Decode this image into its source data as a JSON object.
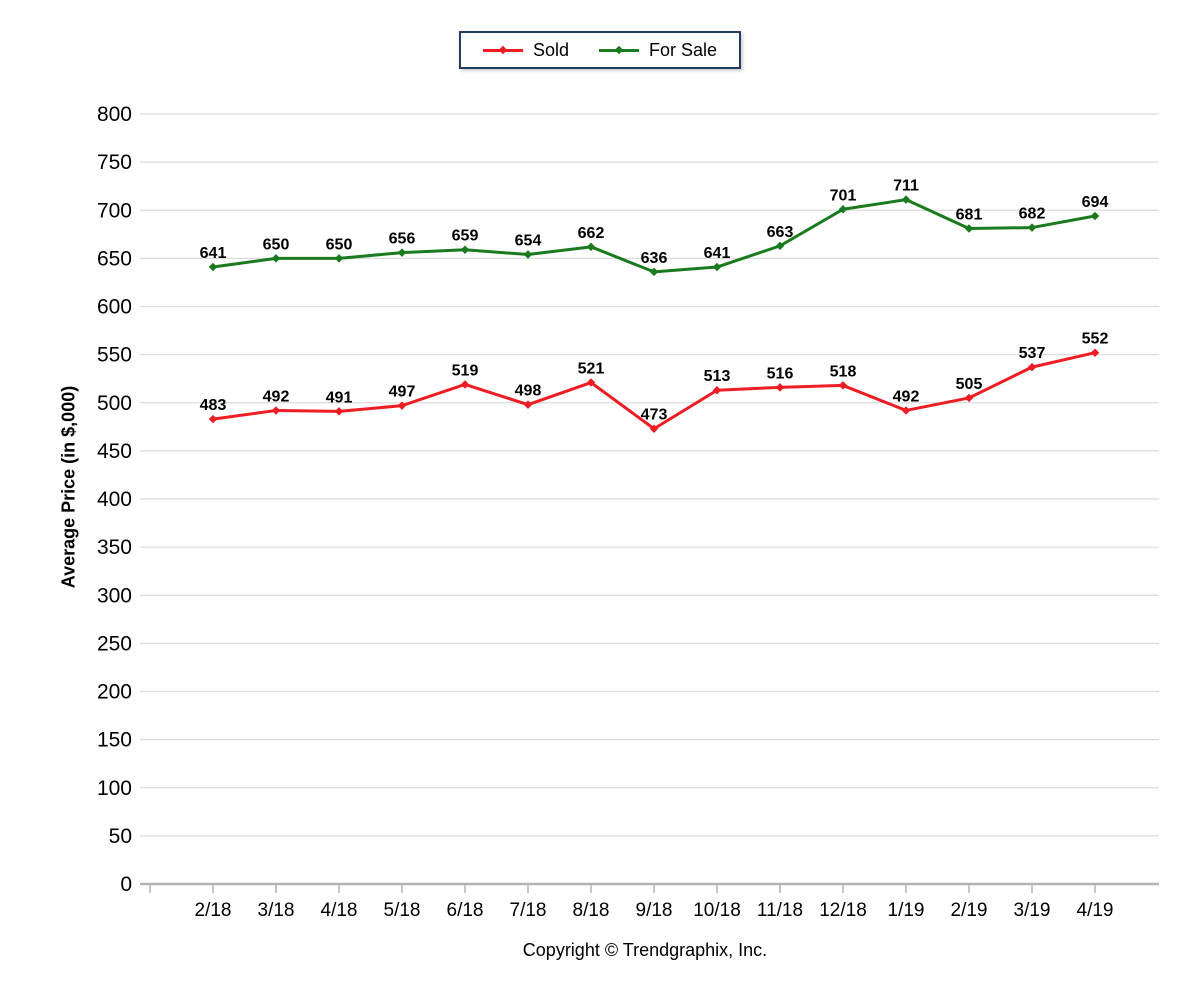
{
  "chart_data": {
    "type": "line",
    "categories": [
      "2/18",
      "3/18",
      "4/18",
      "5/18",
      "6/18",
      "7/18",
      "8/18",
      "9/18",
      "10/18",
      "11/18",
      "12/18",
      "1/19",
      "2/19",
      "3/19",
      "4/19"
    ],
    "series": [
      {
        "name": "Sold",
        "color": "#ee1c23",
        "values": [
          483,
          492,
          491,
          497,
          519,
          498,
          521,
          473,
          513,
          516,
          518,
          492,
          505,
          537,
          552
        ]
      },
      {
        "name": "For Sale",
        "color": "#1a7a1e",
        "values": [
          641,
          650,
          650,
          656,
          659,
          654,
          662,
          636,
          641,
          663,
          701,
          711,
          681,
          682,
          694
        ]
      }
    ],
    "title": "",
    "xlabel": "",
    "ylabel": "Average Price (in $,000)",
    "ylim": [
      0,
      800
    ],
    "ytick_step": 50,
    "grid": true,
    "legend_position": "top-center",
    "show_point_labels": true
  },
  "legend": {
    "border_color": "#1f3b5e",
    "items": [
      "Sold",
      "For Sale"
    ]
  },
  "colors": {
    "gridline": "#dcdcdc",
    "axis_line": "#b3b3b3",
    "tick": "#b3b3b3",
    "text": "#000000",
    "background": "#ffffff"
  },
  "footer": {
    "text": "Copyright © Trendgraphix, Inc."
  }
}
